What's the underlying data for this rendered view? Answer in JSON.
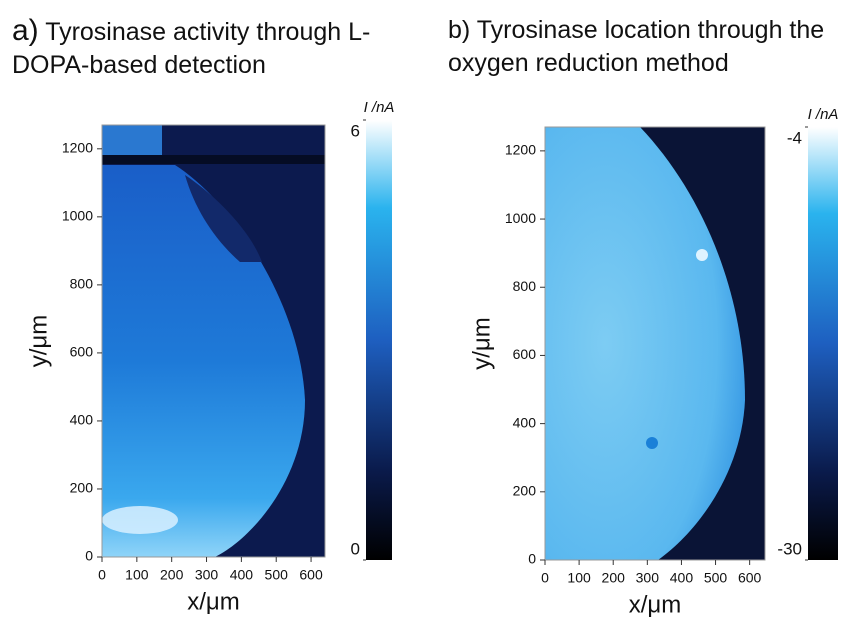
{
  "chart_data": [
    {
      "type": "heatmap",
      "panel": "a)",
      "title": "Tyrosinase activity through L-DOPA-based detection",
      "xlabel": "x/μm",
      "ylabel": "y/μm",
      "xlim": [
        0,
        640
      ],
      "xticks": [
        0,
        100,
        200,
        300,
        400,
        500,
        600
      ],
      "ylim": [
        0,
        1270
      ],
      "yticks": [
        0,
        200,
        400,
        600,
        800,
        1000,
        1200
      ],
      "colorbar_label": "I /nA",
      "clim": [
        0,
        6
      ],
      "cticks": [
        0,
        6
      ]
    },
    {
      "type": "heatmap",
      "panel": "b)",
      "title": "Tyrosinase location through the oxygen reduction method",
      "xlabel": "x/μm",
      "ylabel": "y/μm",
      "xlim": [
        0,
        645
      ],
      "xticks": [
        0,
        100,
        200,
        300,
        400,
        500,
        600
      ],
      "ylim": [
        0,
        1270
      ],
      "yticks": [
        0,
        200,
        400,
        600,
        800,
        1000,
        1200
      ],
      "colorbar_label": "I /nA",
      "clim": [
        -30,
        -4
      ],
      "cticks": [
        -30,
        -4
      ]
    }
  ]
}
